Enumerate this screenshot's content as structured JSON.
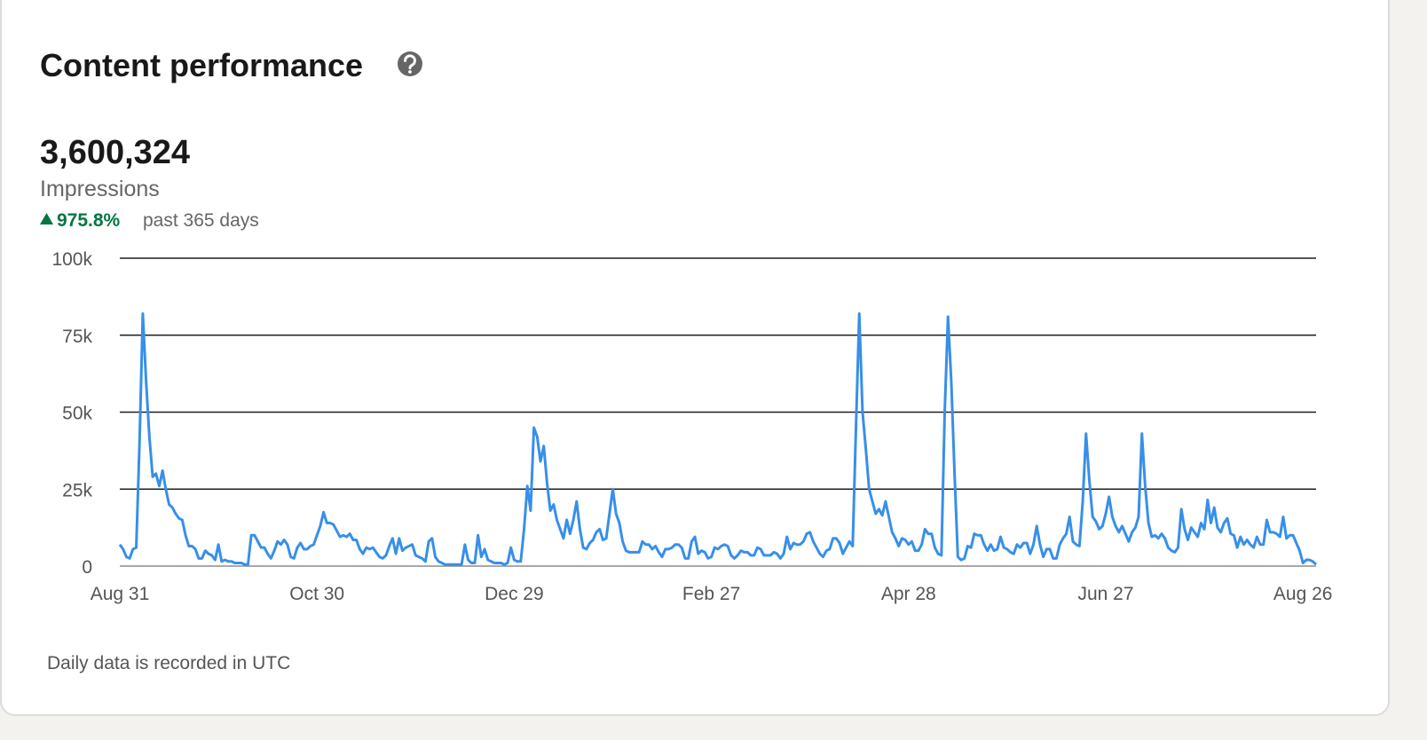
{
  "title": "Content performance",
  "metric": {
    "value": "3,600,324",
    "label": "Impressions",
    "change": "975.8%",
    "period": "past 365 days"
  },
  "footnote": "Daily data is recorded in UTC",
  "chart_data": {
    "type": "line",
    "color": "#378fe9",
    "grid": true,
    "ylim": [
      0,
      100000
    ],
    "yticks": [
      0,
      {
        "value": 25000,
        "label": "25k"
      },
      {
        "value": 50000,
        "label": "50k"
      },
      {
        "value": 75000,
        "label": "75k"
      },
      {
        "value": 100000,
        "label": "100k"
      }
    ],
    "categories": [
      "Aug 31",
      null,
      null,
      null,
      null,
      null,
      null,
      null,
      null,
      null,
      null,
      null,
      null,
      null,
      null,
      null,
      null,
      null,
      null,
      null,
      null,
      null,
      null,
      null,
      null,
      null,
      null,
      null,
      null,
      null,
      null,
      null,
      null,
      null,
      null,
      null,
      null,
      null,
      null,
      null,
      null,
      null,
      null,
      null,
      null,
      null,
      null,
      null,
      null,
      null,
      null,
      null,
      null,
      null,
      null,
      null,
      null,
      null,
      null,
      null,
      "Oct 30",
      null,
      null,
      null,
      null,
      null,
      null,
      null,
      null,
      null,
      null,
      null,
      null,
      null,
      null,
      null,
      null,
      null,
      null,
      null,
      null,
      null,
      null,
      null,
      null,
      null,
      null,
      null,
      null,
      null,
      null,
      null,
      null,
      null,
      null,
      null,
      null,
      null,
      null,
      null,
      null,
      null,
      null,
      null,
      null,
      null,
      null,
      null,
      null,
      null,
      null,
      null,
      null,
      null,
      null,
      null,
      null,
      null,
      null,
      null,
      "Dec 29",
      null,
      null,
      null,
      null,
      null,
      null,
      null,
      null,
      null,
      null,
      null,
      null,
      null,
      null,
      null,
      null,
      null,
      null,
      null,
      null,
      null,
      null,
      null,
      null,
      null,
      null,
      null,
      null,
      null,
      null,
      null,
      null,
      null,
      null,
      null,
      null,
      null,
      null,
      null,
      null,
      null,
      null,
      null,
      null,
      null,
      null,
      null,
      null,
      null,
      null,
      null,
      null,
      null,
      null,
      null,
      null,
      null,
      null,
      null,
      "Feb 27",
      null,
      null,
      null,
      null,
      null,
      null,
      null,
      null,
      null,
      null,
      null,
      null,
      null,
      null,
      null,
      null,
      null,
      null,
      null,
      null,
      null,
      null,
      null,
      null,
      null,
      null,
      null,
      null,
      null,
      null,
      null,
      null,
      null,
      null,
      null,
      null,
      null,
      null,
      null,
      null,
      null,
      null,
      null,
      null,
      null,
      null,
      null,
      null,
      null,
      null,
      null,
      null,
      null,
      null,
      null,
      null,
      null,
      null,
      null,
      "Apr 28",
      null,
      null,
      null,
      null,
      null,
      null,
      null,
      null,
      null,
      null,
      null,
      null,
      null,
      null,
      null,
      null,
      null,
      null,
      null,
      null,
      null,
      null,
      null,
      null,
      null,
      null,
      null,
      null,
      null,
      null,
      null,
      null,
      null,
      null,
      null,
      null,
      null,
      null,
      null,
      null,
      null,
      null,
      null,
      null,
      null,
      null,
      null,
      null,
      null,
      null,
      null,
      null,
      null,
      null,
      null,
      null,
      null,
      null,
      null,
      "Jun 27",
      null,
      null,
      null,
      null,
      null,
      null,
      null,
      null,
      null,
      null,
      null,
      null,
      null,
      null,
      null,
      null,
      null,
      null,
      null,
      null,
      null,
      null,
      null,
      null,
      null,
      null,
      null,
      null,
      null,
      null,
      null,
      null,
      null,
      null,
      null,
      null,
      null,
      null,
      null,
      null,
      null,
      null,
      null,
      null,
      null,
      null,
      null,
      null,
      null,
      null,
      null,
      null,
      null,
      null,
      null,
      null,
      null,
      null,
      null,
      "Aug 26",
      null,
      null,
      null,
      null
    ],
    "values": [
      7000,
      5500,
      3000,
      2500,
      5500,
      6000,
      40000,
      82000,
      60000,
      42000,
      29000,
      30000,
      26000,
      31000,
      25000,
      20000,
      19000,
      17000,
      15500,
      15000,
      10000,
      6500,
      6500,
      5500,
      2500,
      2500,
      5000,
      4000,
      3500,
      2000,
      7000,
      1500,
      2000,
      1500,
      1500,
      1000,
      1000,
      1000,
      500,
      500,
      10000,
      10000,
      8000,
      6000,
      6000,
      4000,
      2500,
      5000,
      8000,
      7000,
      8500,
      7000,
      3000,
      2500,
      6000,
      7500,
      5500,
      5500,
      6500,
      7000,
      10000,
      13000,
      17500,
      14000,
      14000,
      13500,
      11500,
      9500,
      10000,
      9500,
      10500,
      8500,
      8500,
      5500,
      4000,
      6000,
      5500,
      6000,
      4500,
      3000,
      2500,
      3500,
      6500,
      9000,
      4000,
      9000,
      5000,
      6000,
      6500,
      7000,
      3500,
      3000,
      2500,
      1500,
      8000,
      9000,
      3000,
      1500,
      1000,
      500,
      500,
      500,
      500,
      500,
      500,
      7000,
      2000,
      1000,
      1000,
      10000,
      3000,
      5500,
      2000,
      1500,
      1000,
      1000,
      1000,
      500,
      1000,
      6000,
      2000,
      1500,
      1500,
      12000,
      26000,
      18000,
      45000,
      42000,
      34000,
      39000,
      27000,
      18000,
      20000,
      15000,
      12000,
      9000,
      15000,
      10500,
      15000,
      21000,
      12000,
      6000,
      5500,
      7500,
      8500,
      11000,
      12000,
      8500,
      9000,
      17000,
      25000,
      17000,
      14000,
      8000,
      5000,
      4500,
      4500,
      4500,
      4500,
      8000,
      7000,
      7000,
      5500,
      6500,
      4500,
      3000,
      5500,
      5500,
      6000,
      7000,
      7000,
      6000,
      2500,
      2500,
      8000,
      9500,
      4000,
      5000,
      4500,
      2500,
      3000,
      6000,
      5500,
      6500,
      7000,
      6500,
      3500,
      2500,
      3500,
      5000,
      4500,
      4500,
      3500,
      3500,
      6000,
      5500,
      3500,
      3500,
      3500,
      4500,
      4000,
      2500,
      4000,
      9500,
      5500,
      7500,
      7000,
      7000,
      8000,
      10500,
      11000,
      8000,
      6000,
      4000,
      3000,
      5000,
      5500,
      9000,
      9000,
      7500,
      4000,
      6000,
      8000,
      6500,
      45000,
      82000,
      50000,
      38000,
      25000,
      21000,
      17000,
      18500,
      16500,
      21000,
      16000,
      11000,
      9000,
      6500,
      9000,
      8500,
      7000,
      8000,
      5000,
      5000,
      7000,
      12000,
      10500,
      10500,
      6000,
      4000,
      3500,
      50000,
      81000,
      60000,
      30000,
      3000,
      2000,
      2500,
      6500,
      6000,
      10500,
      10000,
      10000,
      7000,
      5000,
      7000,
      5000,
      5500,
      9500,
      6000,
      5500,
      4500,
      4000,
      7000,
      6000,
      7500,
      7500,
      4000,
      7000,
      13000,
      7000,
      3000,
      5500,
      5500,
      2500,
      2500,
      7000,
      9000,
      10500,
      16000,
      8000,
      7000,
      6500,
      21000,
      43000,
      28000,
      16000,
      14500,
      12000,
      13000,
      17000,
      22500,
      16000,
      13000,
      11000,
      13000,
      10500,
      8000,
      11000,
      12500,
      16000,
      43000,
      26000,
      14000,
      9500,
      10000,
      9000,
      10500,
      9000,
      6000,
      5000,
      4500,
      6000,
      18500,
      12000,
      8500,
      12500,
      11000,
      9500,
      14000,
      12000,
      21500,
      14000,
      19000,
      12500,
      11000,
      14000,
      15500,
      10500,
      10000,
      6000,
      9500,
      7000,
      8500,
      7000,
      6000,
      9500,
      7000,
      7000,
      15000,
      11000,
      11000,
      10500,
      9500,
      16000,
      9000,
      10000,
      10000,
      7500,
      5000,
      1000,
      2000,
      2000,
      1500,
      500
    ]
  }
}
